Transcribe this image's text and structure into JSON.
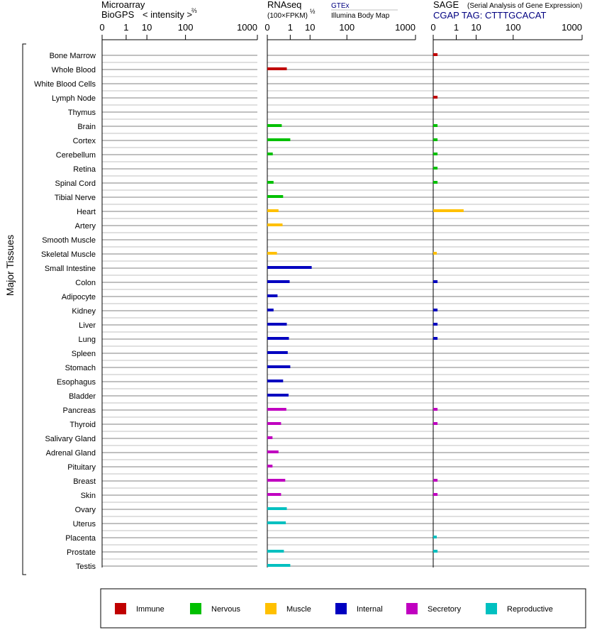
{
  "header": {
    "microarray": {
      "title": "Microarray",
      "subtitle": "BioGPS",
      "intensity_label": "< intensity >",
      "exponent": "⅔"
    },
    "rnaseq": {
      "title": "RNAseq",
      "subtitle": "(100×FPKM)",
      "exponent": "½",
      "gtex_label": "GTEx",
      "illumina_label": "Illumina Body Map"
    },
    "sage": {
      "title": "SAGE",
      "subtitle": "(Serial Analysis of Gene Expression)",
      "tag_label": "CGAP TAG: CTTTGCACAT"
    }
  },
  "y_axis_label": "Major Tissues",
  "chart_data": {
    "type": "bar",
    "orientation": "horizontal",
    "x_scale": "power",
    "x_ticks": [
      "0",
      "1",
      "10",
      "100",
      "1000"
    ],
    "xlim": [
      0,
      1000
    ],
    "categories": [
      "Bone Marrow",
      "Whole Blood",
      "White Blood Cells",
      "Lymph Node",
      "Thymus",
      "Brain",
      "Cortex",
      "Cerebellum",
      "Retina",
      "Spinal Cord",
      "Tibial Nerve",
      "Heart",
      "Artery",
      "Smooth Muscle",
      "Skeletal Muscle",
      "Small Intestine",
      "Colon",
      "Adipocyte",
      "Kidney",
      "Liver",
      "Lung",
      "Spleen",
      "Stomach",
      "Esophagus",
      "Bladder",
      "Pancreas",
      "Thyroid",
      "Salivary Gland",
      "Adrenal Gland",
      "Pituitary",
      "Breast",
      "Skin",
      "Ovary",
      "Uterus",
      "Placenta",
      "Prostate",
      "Testis"
    ],
    "category_groups": [
      "Immune",
      "Immune",
      "Immune",
      "Immune",
      "Immune",
      "Nervous",
      "Nervous",
      "Nervous",
      "Nervous",
      "Nervous",
      "Nervous",
      "Muscle",
      "Muscle",
      "Muscle",
      "Muscle",
      "Internal",
      "Internal",
      "Internal",
      "Internal",
      "Internal",
      "Internal",
      "Internal",
      "Internal",
      "Internal",
      "Internal",
      "Secretory",
      "Secretory",
      "Secretory",
      "Secretory",
      "Secretory",
      "Secretory",
      "Secretory",
      "Reproductive",
      "Reproductive",
      "Reproductive",
      "Reproductive",
      "Reproductive"
    ],
    "series": [
      {
        "name": "Microarray",
        "values": [
          null,
          null,
          null,
          null,
          null,
          null,
          null,
          null,
          null,
          null,
          null,
          null,
          null,
          null,
          null,
          null,
          null,
          null,
          null,
          null,
          null,
          null,
          null,
          null,
          null,
          null,
          null,
          null,
          null,
          null,
          null,
          null,
          null,
          null,
          null,
          null,
          null
        ]
      },
      {
        "name": "RNAseq",
        "values": [
          null,
          0.55,
          null,
          null,
          null,
          0.18,
          1.0,
          0.005,
          null,
          0.008,
          0.25,
          0.07,
          0.22,
          null,
          0.04,
          11.5,
          0.9,
          0.05,
          0.008,
          0.55,
          0.8,
          0.65,
          1.0,
          0.25,
          0.75,
          0.5,
          0.15,
          0.004,
          0.07,
          0.004,
          0.4,
          0.15,
          0.55,
          0.45,
          null,
          0.3,
          1.0
        ]
      },
      {
        "name": "SAGE",
        "values": [
          0.002,
          null,
          null,
          0.002,
          null,
          0.002,
          0.002,
          0.002,
          0.002,
          0.002,
          null,
          2.8,
          null,
          null,
          0.001,
          null,
          0.002,
          null,
          0.002,
          0.002,
          0.002,
          null,
          null,
          null,
          null,
          0.002,
          0.002,
          null,
          null,
          null,
          0.002,
          0.002,
          null,
          null,
          0.001,
          0.002,
          null
        ]
      }
    ]
  },
  "legend": [
    {
      "label": "Immune",
      "color": "#c00000"
    },
    {
      "label": "Nervous",
      "color": "#00c000"
    },
    {
      "label": "Muscle",
      "color": "#ffc000"
    },
    {
      "label": "Internal",
      "color": "#0000c0"
    },
    {
      "label": "Secretory",
      "color": "#c000c0"
    },
    {
      "label": "Reproductive",
      "color": "#00c0c0"
    }
  ],
  "colors": {
    "gtex": "#000080",
    "sage_tag": "#000080",
    "row_line": "#808080",
    "row_line_light": "#c0c0c0"
  }
}
